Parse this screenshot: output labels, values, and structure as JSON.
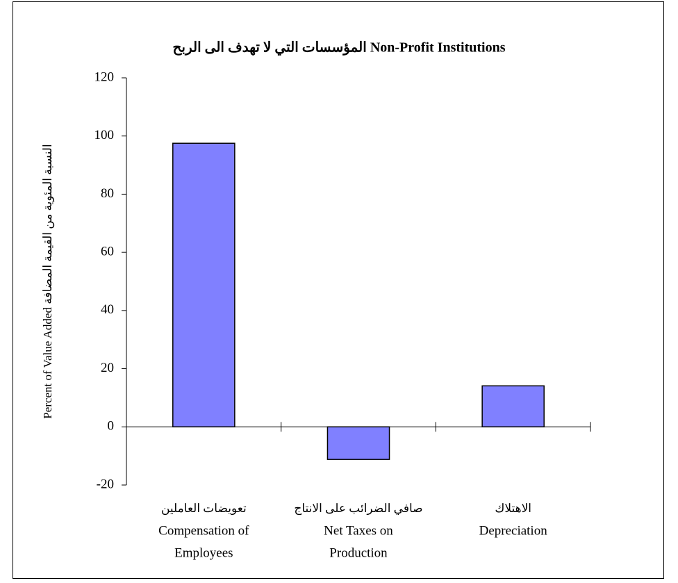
{
  "chart_data": {
    "type": "bar",
    "title": "المؤسسات التي لا تهدف الى الربح Non-Profit Institutions",
    "y_label": "Percent of Value Added النسبة المئوية من القيمة المضافة",
    "categories": [
      [
        "تعويضات العاملين",
        "Compensation of",
        "Employees"
      ],
      [
        "صافي الضرائب على الانتاج",
        "Net Taxes on",
        "Production"
      ],
      [
        "الاهتلاك",
        "Depreciation"
      ]
    ],
    "values": [
      97.5,
      -11.2,
      14.1
    ],
    "color": "#8080ff",
    "ylim": [
      -20,
      120
    ],
    "yticks": [
      -20,
      0,
      20,
      40,
      60,
      80,
      100,
      120
    ],
    "grid": false
  }
}
